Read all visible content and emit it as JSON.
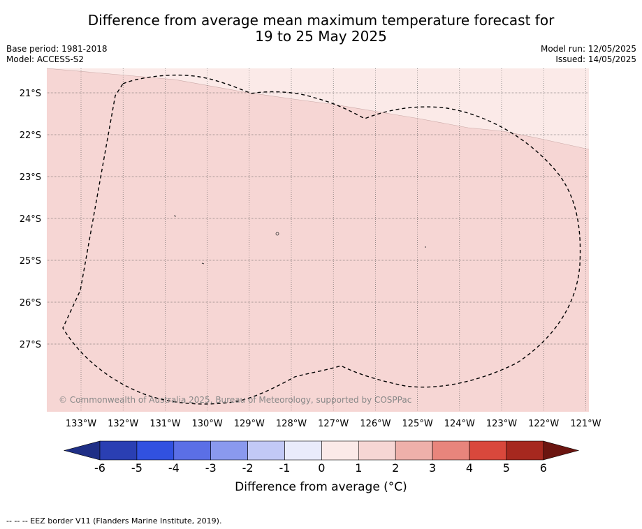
{
  "title": {
    "line1": "Difference from average mean maximum temperature forecast for",
    "line2": "19 to 25 May 2025"
  },
  "meta_left": {
    "base_period": "Base period: 1981-2018",
    "model": "Model: ACCESS-S2"
  },
  "meta_right": {
    "model_run": "Model run: 12/05/2025",
    "issued": "Issued: 14/05/2025"
  },
  "map": {
    "lat_labels": [
      "21°S",
      "22°S",
      "23°S",
      "24°S",
      "25°S",
      "26°S",
      "27°S"
    ],
    "lon_labels": [
      "133°W",
      "132°W",
      "131°W",
      "130°W",
      "129°W",
      "128°W",
      "127°W",
      "126°W",
      "125°W",
      "124°W",
      "123°W",
      "122°W",
      "121°W"
    ],
    "copyright": "© Commonwealth of Australia 2025, Bureau of Meteorology, supported by COSPPac",
    "colors": {
      "band_0_1": "#fbeae8",
      "band_1_2": "#f6d6d4",
      "grid": "#555555"
    }
  },
  "colorbar": {
    "ticks": [
      "-6",
      "-5",
      "-4",
      "-3",
      "-2",
      "-1",
      "0",
      "1",
      "2",
      "3",
      "4",
      "5",
      "6"
    ],
    "colors": [
      "#1f2f86",
      "#2a3fb3",
      "#3151e0",
      "#5b6fe6",
      "#8a99ee",
      "#c2c9f6",
      "#e9ebfb",
      "#fbeae8",
      "#f6d6d4",
      "#eeb0aa",
      "#e8857c",
      "#d9483c",
      "#a6281f",
      "#6b1510"
    ],
    "label": "Difference from average (°C)"
  },
  "footer": "-- -- -- EEZ border V11 (Flanders Marine Institute, 2019)."
}
